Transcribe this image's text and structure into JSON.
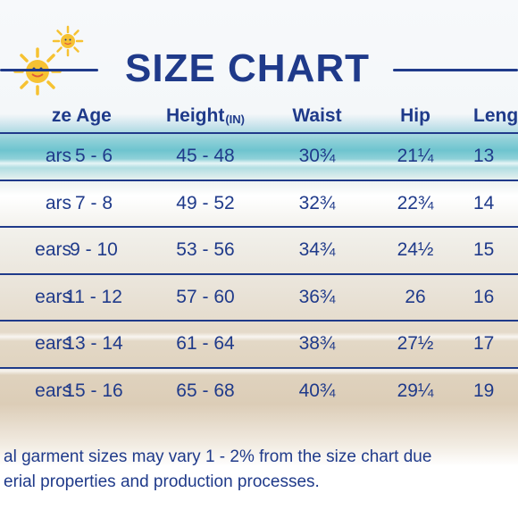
{
  "title": "SIZE CHART",
  "columns": {
    "size": "ze",
    "age": "Age",
    "height": "Height",
    "height_unit": "(IN)",
    "waist": "Waist",
    "hip": "Hip",
    "length": "Leng"
  },
  "rows": [
    {
      "size": "ars",
      "age": "5 - 6",
      "height": "45 - 48",
      "waist": "30¾",
      "hip": "21¼",
      "length": "13"
    },
    {
      "size": "ars",
      "age": "7 - 8",
      "height": "49 - 52",
      "waist": "32¾",
      "hip": "22¾",
      "length": "14"
    },
    {
      "size": "ears",
      "age": "9 - 10",
      "height": "53 - 56",
      "waist": "34¾",
      "hip": "24½",
      "length": "15"
    },
    {
      "size": "ears",
      "age": "11 - 12",
      "height": "57 - 60",
      "waist": "36¾",
      "hip": "26",
      "length": "16"
    },
    {
      "size": "ears",
      "age": "13 - 14",
      "height": "61 - 64",
      "waist": "38¾",
      "hip": "27½",
      "length": "17"
    },
    {
      "size": "ears",
      "age": "15 - 16",
      "height": "65 - 68",
      "waist": "40¾",
      "hip": "29¼",
      "length": "19"
    }
  ],
  "note": {
    "line1": "al garment sizes may vary 1 - 2% from the size chart due",
    "line2": "erial properties and production processes."
  },
  "colors": {
    "primary": "#1f3a8a",
    "sun": "#f6c232"
  },
  "icons": [
    "sun-icon",
    "sun-icon"
  ]
}
